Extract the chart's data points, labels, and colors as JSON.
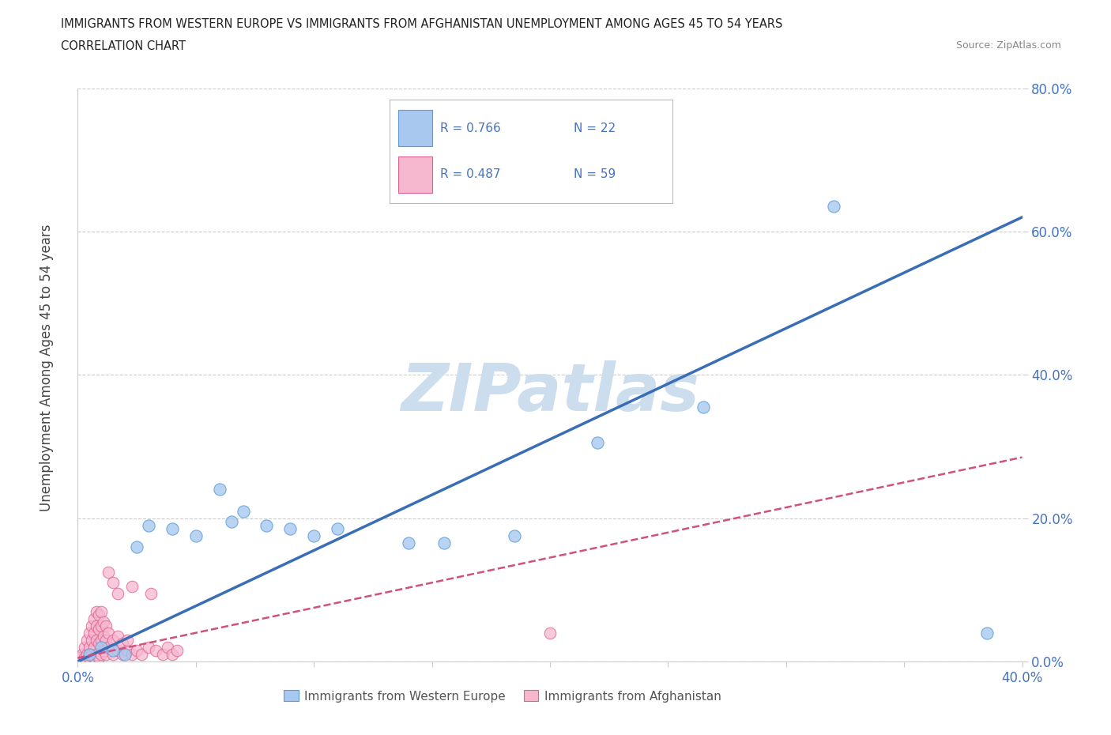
{
  "title_line1": "IMMIGRANTS FROM WESTERN EUROPE VS IMMIGRANTS FROM AFGHANISTAN UNEMPLOYMENT AMONG AGES 45 TO 54 YEARS",
  "title_line2": "CORRELATION CHART",
  "source": "Source: ZipAtlas.com",
  "xlabel_blue": "Immigrants from Western Europe",
  "xlabel_pink": "Immigrants from Afghanistan",
  "ylabel": "Unemployment Among Ages 45 to 54 years",
  "xlim": [
    0,
    0.4
  ],
  "ylim": [
    0,
    0.8
  ],
  "xticks": [
    0.0,
    0.05,
    0.1,
    0.15,
    0.2,
    0.25,
    0.3,
    0.35,
    0.4
  ],
  "yticks": [
    0.0,
    0.2,
    0.4,
    0.6,
    0.8
  ],
  "ytick_labels": [
    "0.0%",
    "20.0%",
    "40.0%",
    "60.0%",
    "80.0%"
  ],
  "legend_blue_r": "R = 0.766",
  "legend_blue_n": "N = 22",
  "legend_pink_r": "R = 0.487",
  "legend_pink_n": "N = 59",
  "blue_scatter": [
    [
      0.005,
      0.01
    ],
    [
      0.01,
      0.02
    ],
    [
      0.015,
      0.015
    ],
    [
      0.02,
      0.01
    ],
    [
      0.025,
      0.16
    ],
    [
      0.03,
      0.19
    ],
    [
      0.04,
      0.185
    ],
    [
      0.05,
      0.175
    ],
    [
      0.06,
      0.24
    ],
    [
      0.065,
      0.195
    ],
    [
      0.07,
      0.21
    ],
    [
      0.08,
      0.19
    ],
    [
      0.09,
      0.185
    ],
    [
      0.1,
      0.175
    ],
    [
      0.11,
      0.185
    ],
    [
      0.14,
      0.165
    ],
    [
      0.155,
      0.165
    ],
    [
      0.185,
      0.175
    ],
    [
      0.22,
      0.305
    ],
    [
      0.265,
      0.355
    ],
    [
      0.32,
      0.635
    ],
    [
      0.385,
      0.04
    ]
  ],
  "pink_scatter": [
    [
      0.001,
      0.005
    ],
    [
      0.002,
      0.01
    ],
    [
      0.003,
      0.005
    ],
    [
      0.003,
      0.02
    ],
    [
      0.004,
      0.01
    ],
    [
      0.004,
      0.03
    ],
    [
      0.005,
      0.005
    ],
    [
      0.005,
      0.02
    ],
    [
      0.005,
      0.04
    ],
    [
      0.006,
      0.01
    ],
    [
      0.006,
      0.03
    ],
    [
      0.006,
      0.05
    ],
    [
      0.007,
      0.005
    ],
    [
      0.007,
      0.02
    ],
    [
      0.007,
      0.04
    ],
    [
      0.007,
      0.06
    ],
    [
      0.008,
      0.01
    ],
    [
      0.008,
      0.03
    ],
    [
      0.008,
      0.05
    ],
    [
      0.008,
      0.07
    ],
    [
      0.009,
      0.005
    ],
    [
      0.009,
      0.025
    ],
    [
      0.009,
      0.045
    ],
    [
      0.009,
      0.065
    ],
    [
      0.01,
      0.01
    ],
    [
      0.01,
      0.03
    ],
    [
      0.01,
      0.05
    ],
    [
      0.01,
      0.07
    ],
    [
      0.011,
      0.015
    ],
    [
      0.011,
      0.035
    ],
    [
      0.011,
      0.055
    ],
    [
      0.012,
      0.01
    ],
    [
      0.012,
      0.03
    ],
    [
      0.012,
      0.05
    ],
    [
      0.013,
      0.02
    ],
    [
      0.013,
      0.04
    ],
    [
      0.013,
      0.125
    ],
    [
      0.015,
      0.01
    ],
    [
      0.015,
      0.03
    ],
    [
      0.015,
      0.11
    ],
    [
      0.017,
      0.015
    ],
    [
      0.017,
      0.035
    ],
    [
      0.017,
      0.095
    ],
    [
      0.019,
      0.01
    ],
    [
      0.019,
      0.025
    ],
    [
      0.021,
      0.015
    ],
    [
      0.021,
      0.03
    ],
    [
      0.023,
      0.01
    ],
    [
      0.023,
      0.105
    ],
    [
      0.025,
      0.015
    ],
    [
      0.027,
      0.01
    ],
    [
      0.03,
      0.02
    ],
    [
      0.031,
      0.095
    ],
    [
      0.033,
      0.015
    ],
    [
      0.036,
      0.01
    ],
    [
      0.038,
      0.02
    ],
    [
      0.04,
      0.01
    ],
    [
      0.042,
      0.015
    ],
    [
      0.2,
      0.04
    ]
  ],
  "blue_line": [
    0.0,
    0.0,
    0.4,
    0.62
  ],
  "pink_line": [
    0.0,
    0.005,
    0.4,
    0.285
  ],
  "blue_color": "#a8c8f0",
  "blue_edge_color": "#5b9bd5",
  "pink_color": "#f5b8ce",
  "pink_edge_color": "#e06090",
  "blue_line_color": "#3a6db5",
  "pink_line_color": "#d05080",
  "watermark_text": "ZIPatlas",
  "watermark_color": "#ccdded",
  "background_color": "#ffffff",
  "grid_color": "#cccccc",
  "tick_color": "#4472c4",
  "title_color": "#222222",
  "ylabel_color": "#444444",
  "source_color": "#888888"
}
